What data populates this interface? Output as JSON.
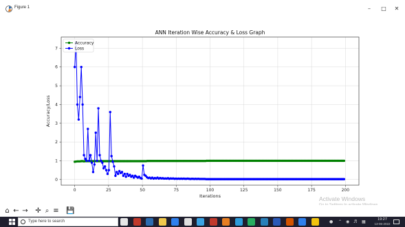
{
  "window": {
    "title": "Figure 1",
    "minimize_glyph": "–",
    "maximize_glyph": "□",
    "close_glyph": "✕"
  },
  "toolbar": {
    "buttons": [
      "home-icon",
      "back-icon",
      "forward-icon",
      "pan-icon",
      "zoom-icon",
      "configure-subplots-icon",
      "save-icon"
    ],
    "glyphs": [
      "⌂",
      "←",
      "→",
      "✛",
      "⌕",
      "≡",
      "💾"
    ]
  },
  "watermark": {
    "title": "Activate Windows",
    "subtitle": "Go to Settings to activate Windows."
  },
  "taskbar": {
    "search_placeholder": "Type here to search",
    "clock_time": "19:27",
    "clock_date": "13-06-2022",
    "icon_colors": [
      "#e8e8e8",
      "#c0392b",
      "#2b6cb0",
      "#f2c94c",
      "#2f80ed",
      "#e0e0e0",
      "#3aa3e3",
      "#c0392b",
      "#e67e22",
      "#2d9cdb",
      "#27ae60",
      "#2980b9",
      "#2a5ab8",
      "#d35400",
      "#2f80ed",
      "#f1c40f"
    ]
  },
  "chart_data": {
    "type": "line",
    "title": "ANN Iteration Wise Accuracy & Loss Graph",
    "xlabel": "Iterations",
    "ylabel": "Accuracy/Loss",
    "xlim": [
      -10,
      210
    ],
    "ylim": [
      -0.3,
      7.6
    ],
    "xticks": [
      0,
      25,
      50,
      75,
      100,
      125,
      150,
      175,
      200
    ],
    "yticks": [
      0,
      1,
      2,
      3,
      4,
      5,
      6,
      7
    ],
    "grid": true,
    "legend_position": "top-left",
    "series": [
      {
        "name": "Accuracy",
        "color": "#008000",
        "marker": "circle",
        "x_start": 0,
        "x_end": 199,
        "values": [
          0.95,
          0.96,
          0.97,
          0.97,
          0.97,
          0.98,
          0.98,
          0.97,
          0.98,
          0.98,
          0.98,
          0.98,
          0.98,
          0.98,
          0.98,
          0.98,
          0.98,
          0.98,
          0.98,
          0.98,
          0.98,
          0.98,
          0.98,
          0.98,
          0.98,
          0.98,
          0.98,
          0.98,
          0.98,
          0.98,
          0.98,
          0.98,
          0.98,
          0.98,
          0.98,
          0.98,
          0.98,
          0.98,
          0.98,
          0.98,
          0.98,
          0.98,
          0.98,
          0.98,
          0.98,
          0.98,
          0.98,
          0.98,
          0.98,
          0.98,
          0.98,
          0.98,
          0.98,
          0.98,
          0.98,
          0.99,
          0.99,
          0.99,
          0.99,
          0.99,
          0.99,
          0.99,
          0.99,
          0.99,
          0.99,
          0.99,
          0.99,
          0.99,
          0.99,
          0.99,
          0.99,
          0.99,
          0.99,
          0.99,
          0.99,
          0.99,
          0.99,
          0.99,
          0.99,
          0.99,
          0.99,
          0.99,
          0.99,
          0.99,
          0.99,
          0.99,
          0.99,
          0.99,
          0.99,
          0.99,
          0.99,
          0.99,
          0.99,
          0.99,
          0.99,
          0.99,
          0.99,
          0.99,
          0.99,
          0.99,
          1.0,
          1.0,
          1.0,
          1.0,
          1.0,
          1.0,
          1.0,
          1.0,
          1.0,
          1.0,
          1.0,
          1.0,
          1.0,
          1.0,
          1.0,
          1.0,
          1.0,
          1.0,
          1.0,
          1.0,
          1.0,
          1.0,
          1.0,
          1.0,
          1.0,
          1.0,
          1.0,
          1.0,
          1.0,
          1.0,
          1.0,
          1.0,
          1.0,
          1.0,
          1.0,
          1.0,
          1.0,
          1.0,
          1.0,
          1.0,
          1.0,
          1.0,
          1.0,
          1.0,
          1.0,
          1.0,
          1.0,
          1.0,
          1.0,
          1.0,
          1.0,
          1.0,
          1.0,
          1.0,
          1.0,
          1.0,
          1.0,
          1.0,
          1.0,
          1.0,
          1.0,
          1.0,
          1.0,
          1.0,
          1.0,
          1.0,
          1.0,
          1.0,
          1.0,
          1.0,
          1.0,
          1.0,
          1.0,
          1.0,
          1.0,
          1.0,
          1.0,
          1.0,
          1.0,
          1.0,
          1.0,
          1.0,
          1.0,
          1.0,
          1.0,
          1.0,
          1.0,
          1.0,
          1.0,
          1.0,
          1.0,
          1.0,
          1.0,
          1.0,
          1.0,
          1.0,
          1.0,
          1.0,
          1.0,
          1.0,
          1.0,
          1.0,
          1.0,
          1.0,
          1.0
        ]
      },
      {
        "name": "Loss",
        "color": "#0000ff",
        "marker": "circle",
        "x_start": 0,
        "x_end": 199,
        "values": [
          6.0,
          7.3,
          4.0,
          3.2,
          4.4,
          6.0,
          4.0,
          1.3,
          1.1,
          1.0,
          2.7,
          1.0,
          1.3,
          0.9,
          0.4,
          0.8,
          2.5,
          1.0,
          3.8,
          1.3,
          1.0,
          0.9,
          0.6,
          0.7,
          0.5,
          0.3,
          0.5,
          3.6,
          1.25,
          0.95,
          0.7,
          0.2,
          0.4,
          0.3,
          0.45,
          0.35,
          0.4,
          0.2,
          0.3,
          0.15,
          0.3,
          0.2,
          0.25,
          0.15,
          0.2,
          0.1,
          0.2,
          0.15,
          0.1,
          0.15,
          0.08,
          0.05,
          0.75,
          0.25,
          0.2,
          0.12,
          0.08,
          0.1,
          0.06,
          0.1,
          0.05,
          0.08,
          0.06,
          0.1,
          0.05,
          0.08,
          0.06,
          0.07,
          0.05,
          0.06,
          0.05,
          0.07,
          0.04,
          0.06,
          0.05,
          0.06,
          0.04,
          0.05,
          0.04,
          0.05,
          0.04,
          0.05,
          0.04,
          0.05,
          0.04,
          0.04,
          0.05,
          0.04,
          0.03,
          0.04,
          0.04,
          0.03,
          0.04,
          0.03,
          0.04,
          0.03,
          0.03,
          0.03,
          0.03,
          0.03,
          0.02,
          0.02,
          0.02,
          0.02,
          0.02,
          0.02,
          0.02,
          0.02,
          0.02,
          0.02,
          0.02,
          0.02,
          0.02,
          0.02,
          0.02,
          0.02,
          0.02,
          0.02,
          0.02,
          0.02,
          0.02,
          0.02,
          0.02,
          0.02,
          0.02,
          0.02,
          0.02,
          0.02,
          0.02,
          0.02,
          0.02,
          0.02,
          0.02,
          0.02,
          0.02,
          0.02,
          0.02,
          0.02,
          0.02,
          0.02,
          0.02,
          0.02,
          0.02,
          0.02,
          0.02,
          0.02,
          0.02,
          0.02,
          0.02,
          0.02,
          0.02,
          0.02,
          0.02,
          0.02,
          0.02,
          0.02,
          0.02,
          0.02,
          0.02,
          0.02,
          0.02,
          0.02,
          0.02,
          0.02,
          0.02,
          0.02,
          0.02,
          0.02,
          0.02,
          0.02,
          0.02,
          0.02,
          0.02,
          0.02,
          0.02,
          0.02,
          0.02,
          0.02,
          0.02,
          0.02,
          0.02,
          0.02,
          0.02,
          0.02,
          0.02,
          0.02,
          0.02,
          0.02,
          0.02,
          0.02,
          0.02,
          0.02,
          0.02,
          0.02,
          0.02,
          0.02,
          0.02,
          0.02,
          0.02,
          0.02,
          0.02,
          0.02,
          0.02,
          0.02,
          0.02,
          0.02
        ]
      }
    ]
  }
}
